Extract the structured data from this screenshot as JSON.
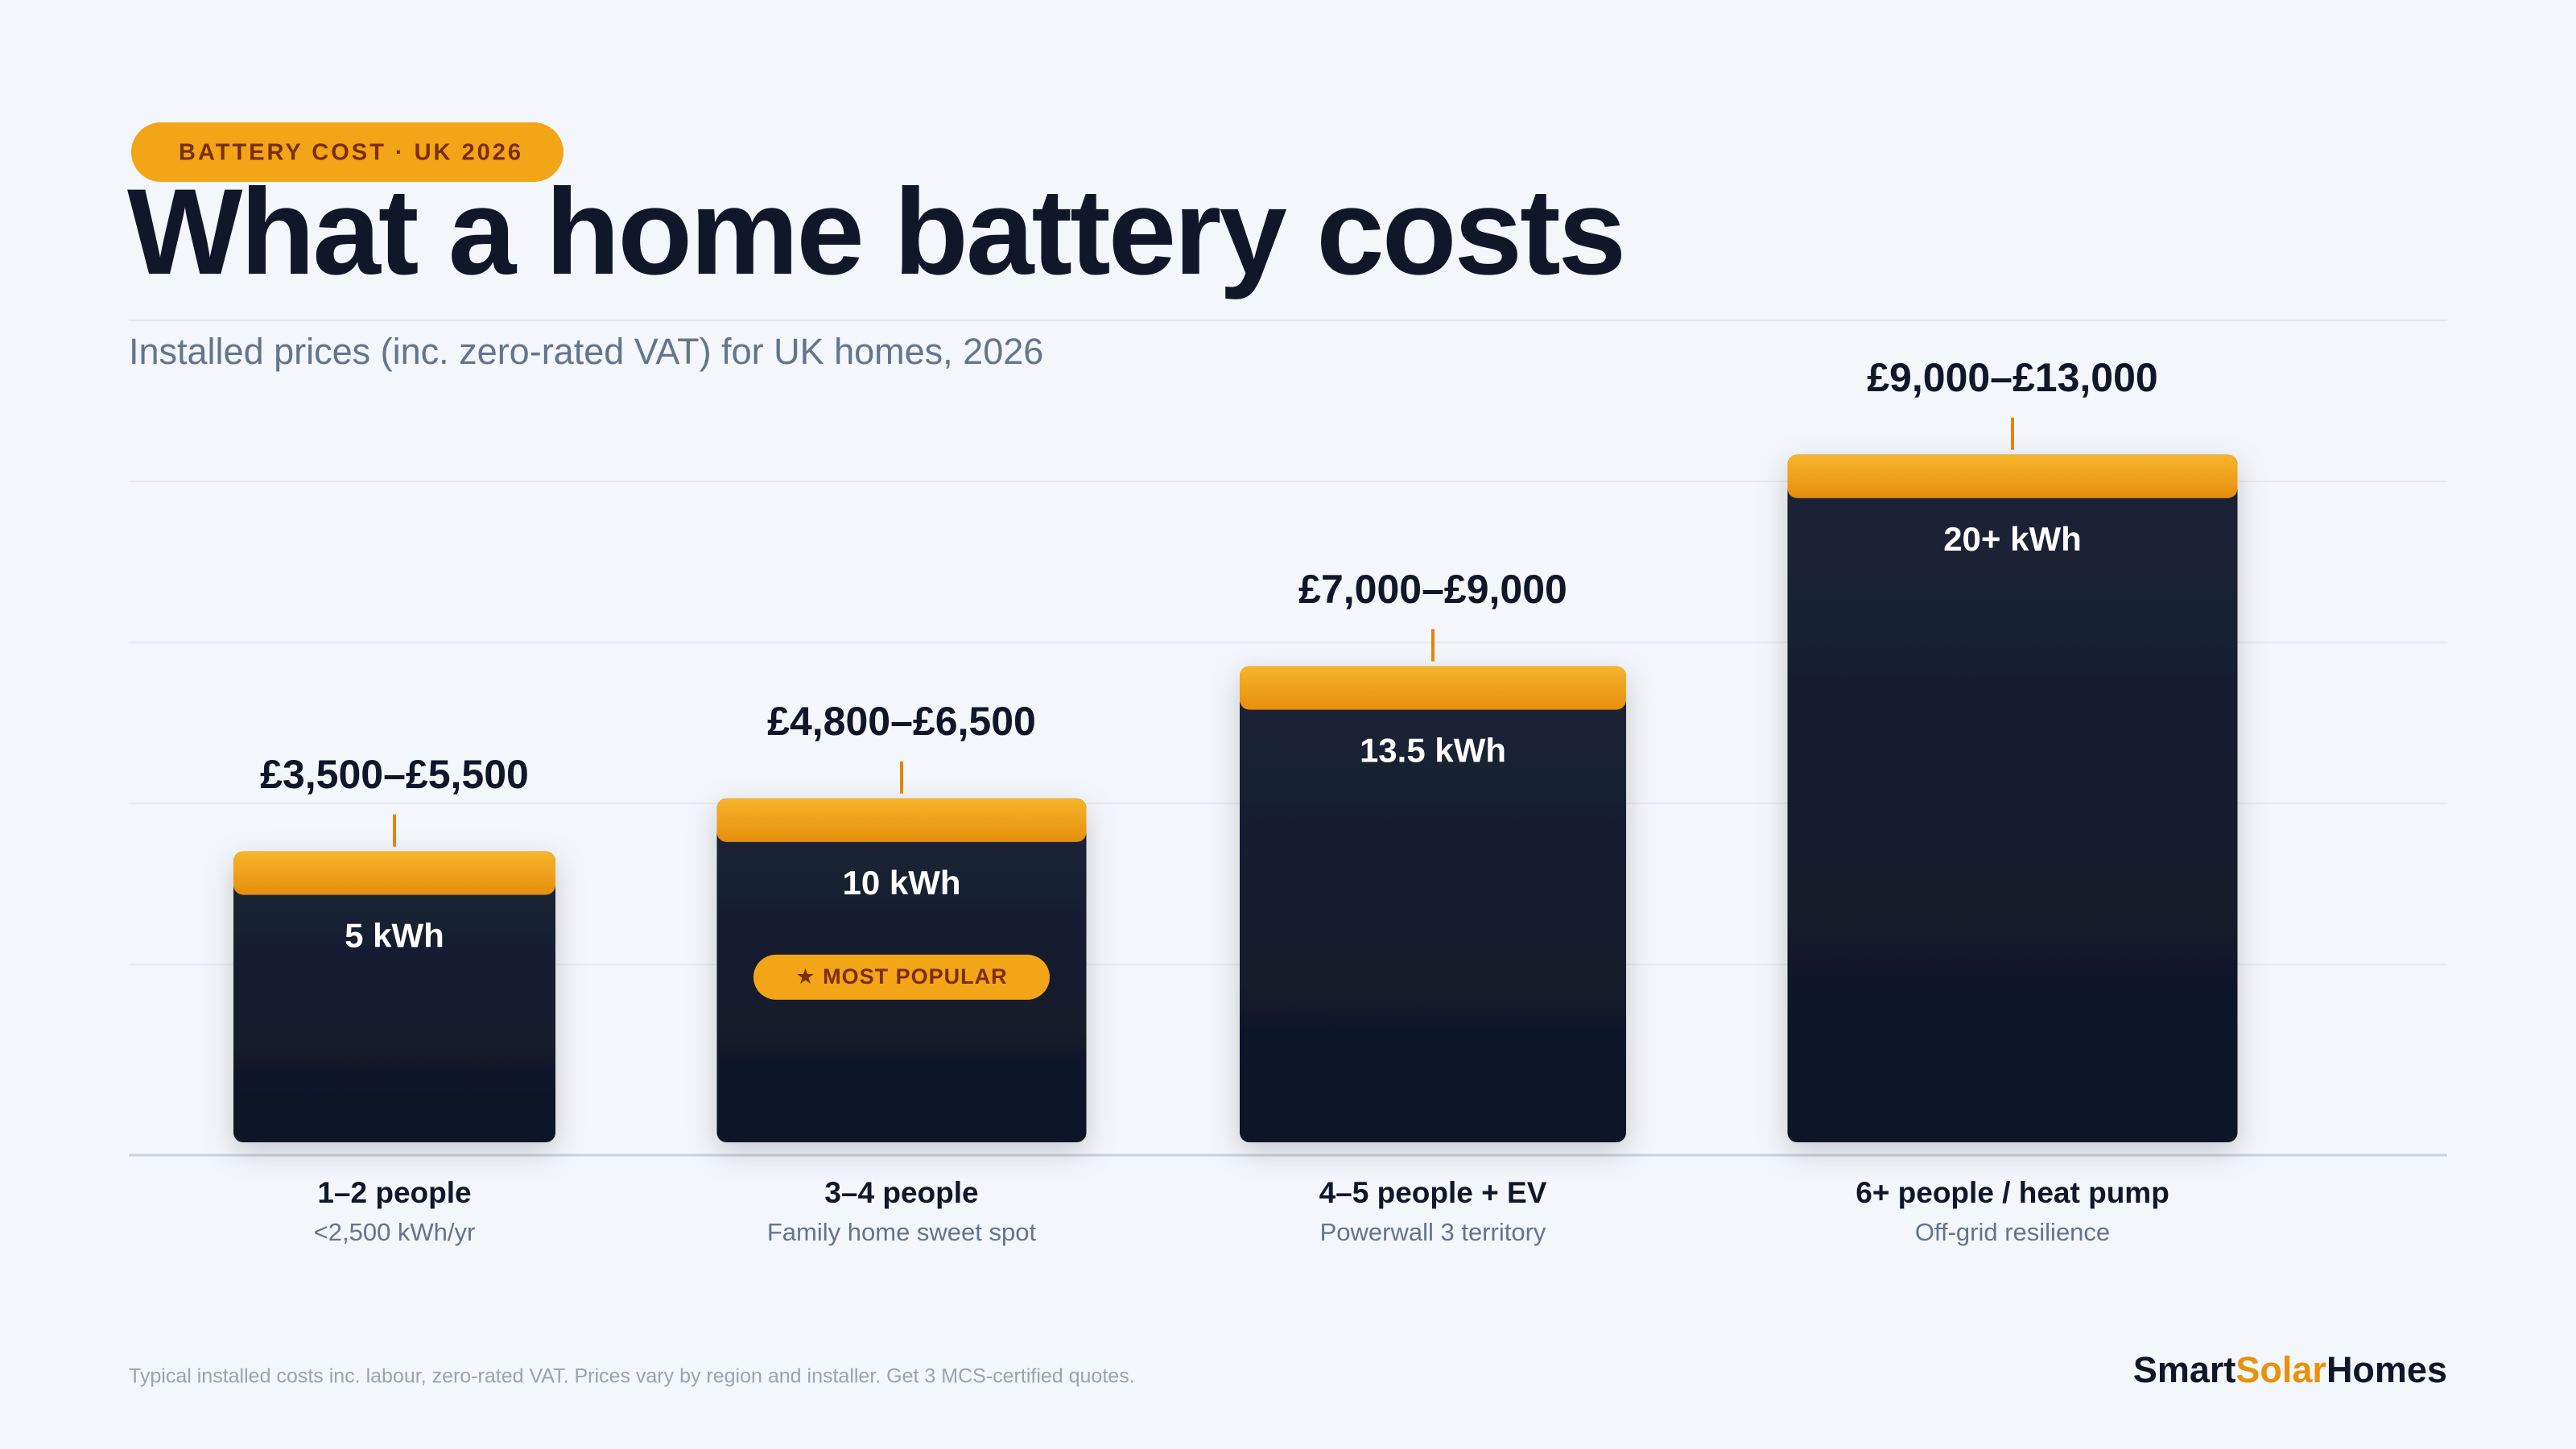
{
  "chart_data": {
    "type": "bar",
    "badge": "BATTERY COST · UK 2026",
    "title": "What a home battery costs",
    "subtitle": "Installed prices (inc. zero-rated VAT) for UK homes, 2026",
    "categories": [
      "1–2 people",
      "3–4 people",
      "4–5 people + EV",
      "6+ people / heat pump"
    ],
    "category_notes": [
      "<2,500 kWh/yr",
      "Family home sweet spot",
      "Powerwall 3 territory",
      "Off-grid resilience"
    ],
    "capacity_labels": [
      "5 kWh",
      "10 kWh",
      "13.5 kWh",
      "20+ kWh"
    ],
    "low": [
      3500,
      4800,
      7000,
      9000
    ],
    "high": [
      5500,
      6500,
      9000,
      13000
    ],
    "range_labels": [
      "£3,500–£5,500",
      "£4,800–£6,500",
      "£7,000–£9,000",
      "£9,000–£13,000"
    ],
    "highlight": {
      "index": 1,
      "label": "★ MOST POPULAR"
    },
    "ylim": [
      0,
      14000
    ],
    "color": "#161e2e",
    "cap_color": "#f2a516",
    "footnote": "Typical installed costs inc. labour, zero-rated VAT. Prices vary by region and installer. Get 3 MCS-certified quotes.",
    "brand": [
      "Smart",
      "Solar",
      "Homes"
    ]
  }
}
